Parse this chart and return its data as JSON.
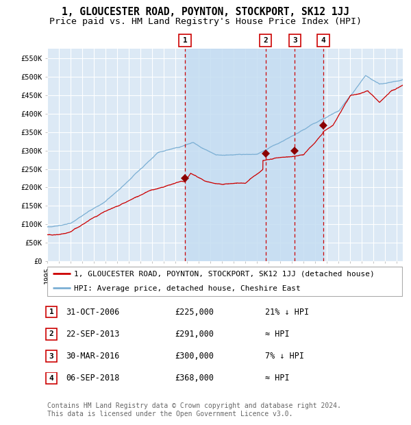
{
  "title": "1, GLOUCESTER ROAD, POYNTON, STOCKPORT, SK12 1JJ",
  "subtitle": "Price paid vs. HM Land Registry's House Price Index (HPI)",
  "ylim": [
    0,
    575000
  ],
  "yticks": [
    0,
    50000,
    100000,
    150000,
    200000,
    250000,
    300000,
    350000,
    400000,
    450000,
    500000,
    550000
  ],
  "ytick_labels": [
    "£0",
    "£50K",
    "£100K",
    "£150K",
    "£200K",
    "£250K",
    "£300K",
    "£350K",
    "£400K",
    "£450K",
    "£500K",
    "£550K"
  ],
  "background_color": "#ffffff",
  "plot_bg_color": "#dce9f5",
  "grid_color": "#ffffff",
  "hpi_line_color": "#7bafd4",
  "price_line_color": "#cc0000",
  "sale_marker_color": "#8b0000",
  "sale_dashed_color": "#cc0000",
  "transactions": [
    {
      "num": 1,
      "date_label": "31-OCT-2006",
      "date_x": 2006.83,
      "price": 225000,
      "price_label": "£225,000",
      "relation": "21% ↓ HPI"
    },
    {
      "num": 2,
      "date_label": "22-SEP-2013",
      "date_x": 2013.72,
      "price": 291000,
      "price_label": "£291,000",
      "relation": "≈ HPI"
    },
    {
      "num": 3,
      "date_label": "30-MAR-2016",
      "date_x": 2016.24,
      "price": 300000,
      "price_label": "£300,000",
      "relation": "7% ↓ HPI"
    },
    {
      "num": 4,
      "date_label": "06-SEP-2018",
      "date_x": 2018.67,
      "price": 368000,
      "price_label": "£368,000",
      "relation": "≈ HPI"
    }
  ],
  "xmin": 1995.0,
  "xmax": 2025.5,
  "shade_xmin": 2006.83,
  "shade_xmax": 2018.67,
  "legend_address": "1, GLOUCESTER ROAD, POYNTON, STOCKPORT, SK12 1JJ (detached house)",
  "legend_hpi": "HPI: Average price, detached house, Cheshire East",
  "footer": "Contains HM Land Registry data © Crown copyright and database right 2024.\nThis data is licensed under the Open Government Licence v3.0.",
  "title_fontsize": 10.5,
  "subtitle_fontsize": 9.5,
  "tick_fontsize": 7.5,
  "legend_fontsize": 8,
  "footer_fontsize": 7,
  "table_fontsize": 8.5
}
